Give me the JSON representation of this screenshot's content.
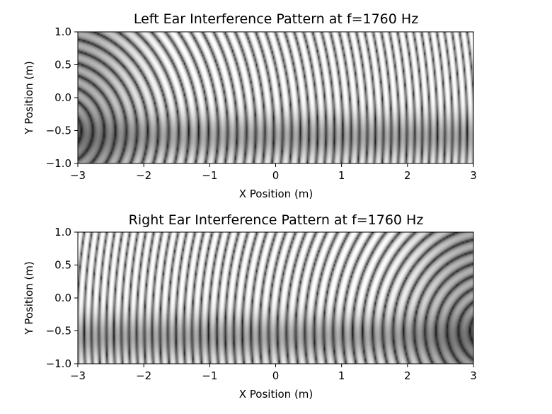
{
  "chart_data": [
    {
      "type": "heatmap",
      "title": "Left Ear Interference Pattern at f=1760 Hz",
      "xlabel": "X Position (m)",
      "ylabel": "Y Position (m)",
      "xlim": [
        -3,
        3
      ],
      "ylim": [
        -1,
        1
      ],
      "xticks": [
        "−3",
        "−2",
        "−1",
        "0",
        "1",
        "2",
        "3"
      ],
      "yticks": [
        "1.0",
        "0.5",
        "0.0",
        "−0.5",
        "−1.0"
      ],
      "colormap": "gray",
      "source_position": [
        -3.3,
        -0.5
      ],
      "frequency_hz": 1760
    },
    {
      "type": "heatmap",
      "title": "Right Ear Interference Pattern at f=1760 Hz",
      "xlabel": "X Position (m)",
      "ylabel": "Y Position (m)",
      "xlim": [
        -3,
        3
      ],
      "ylim": [
        -1,
        1
      ],
      "xticks": [
        "−3",
        "−2",
        "−1",
        "0",
        "1",
        "2",
        "3"
      ],
      "yticks": [
        "1.0",
        "0.5",
        "0.0",
        "−0.5",
        "−1.0"
      ],
      "colormap": "gray",
      "source_position": [
        3.3,
        -0.5
      ],
      "frequency_hz": 1760
    }
  ]
}
